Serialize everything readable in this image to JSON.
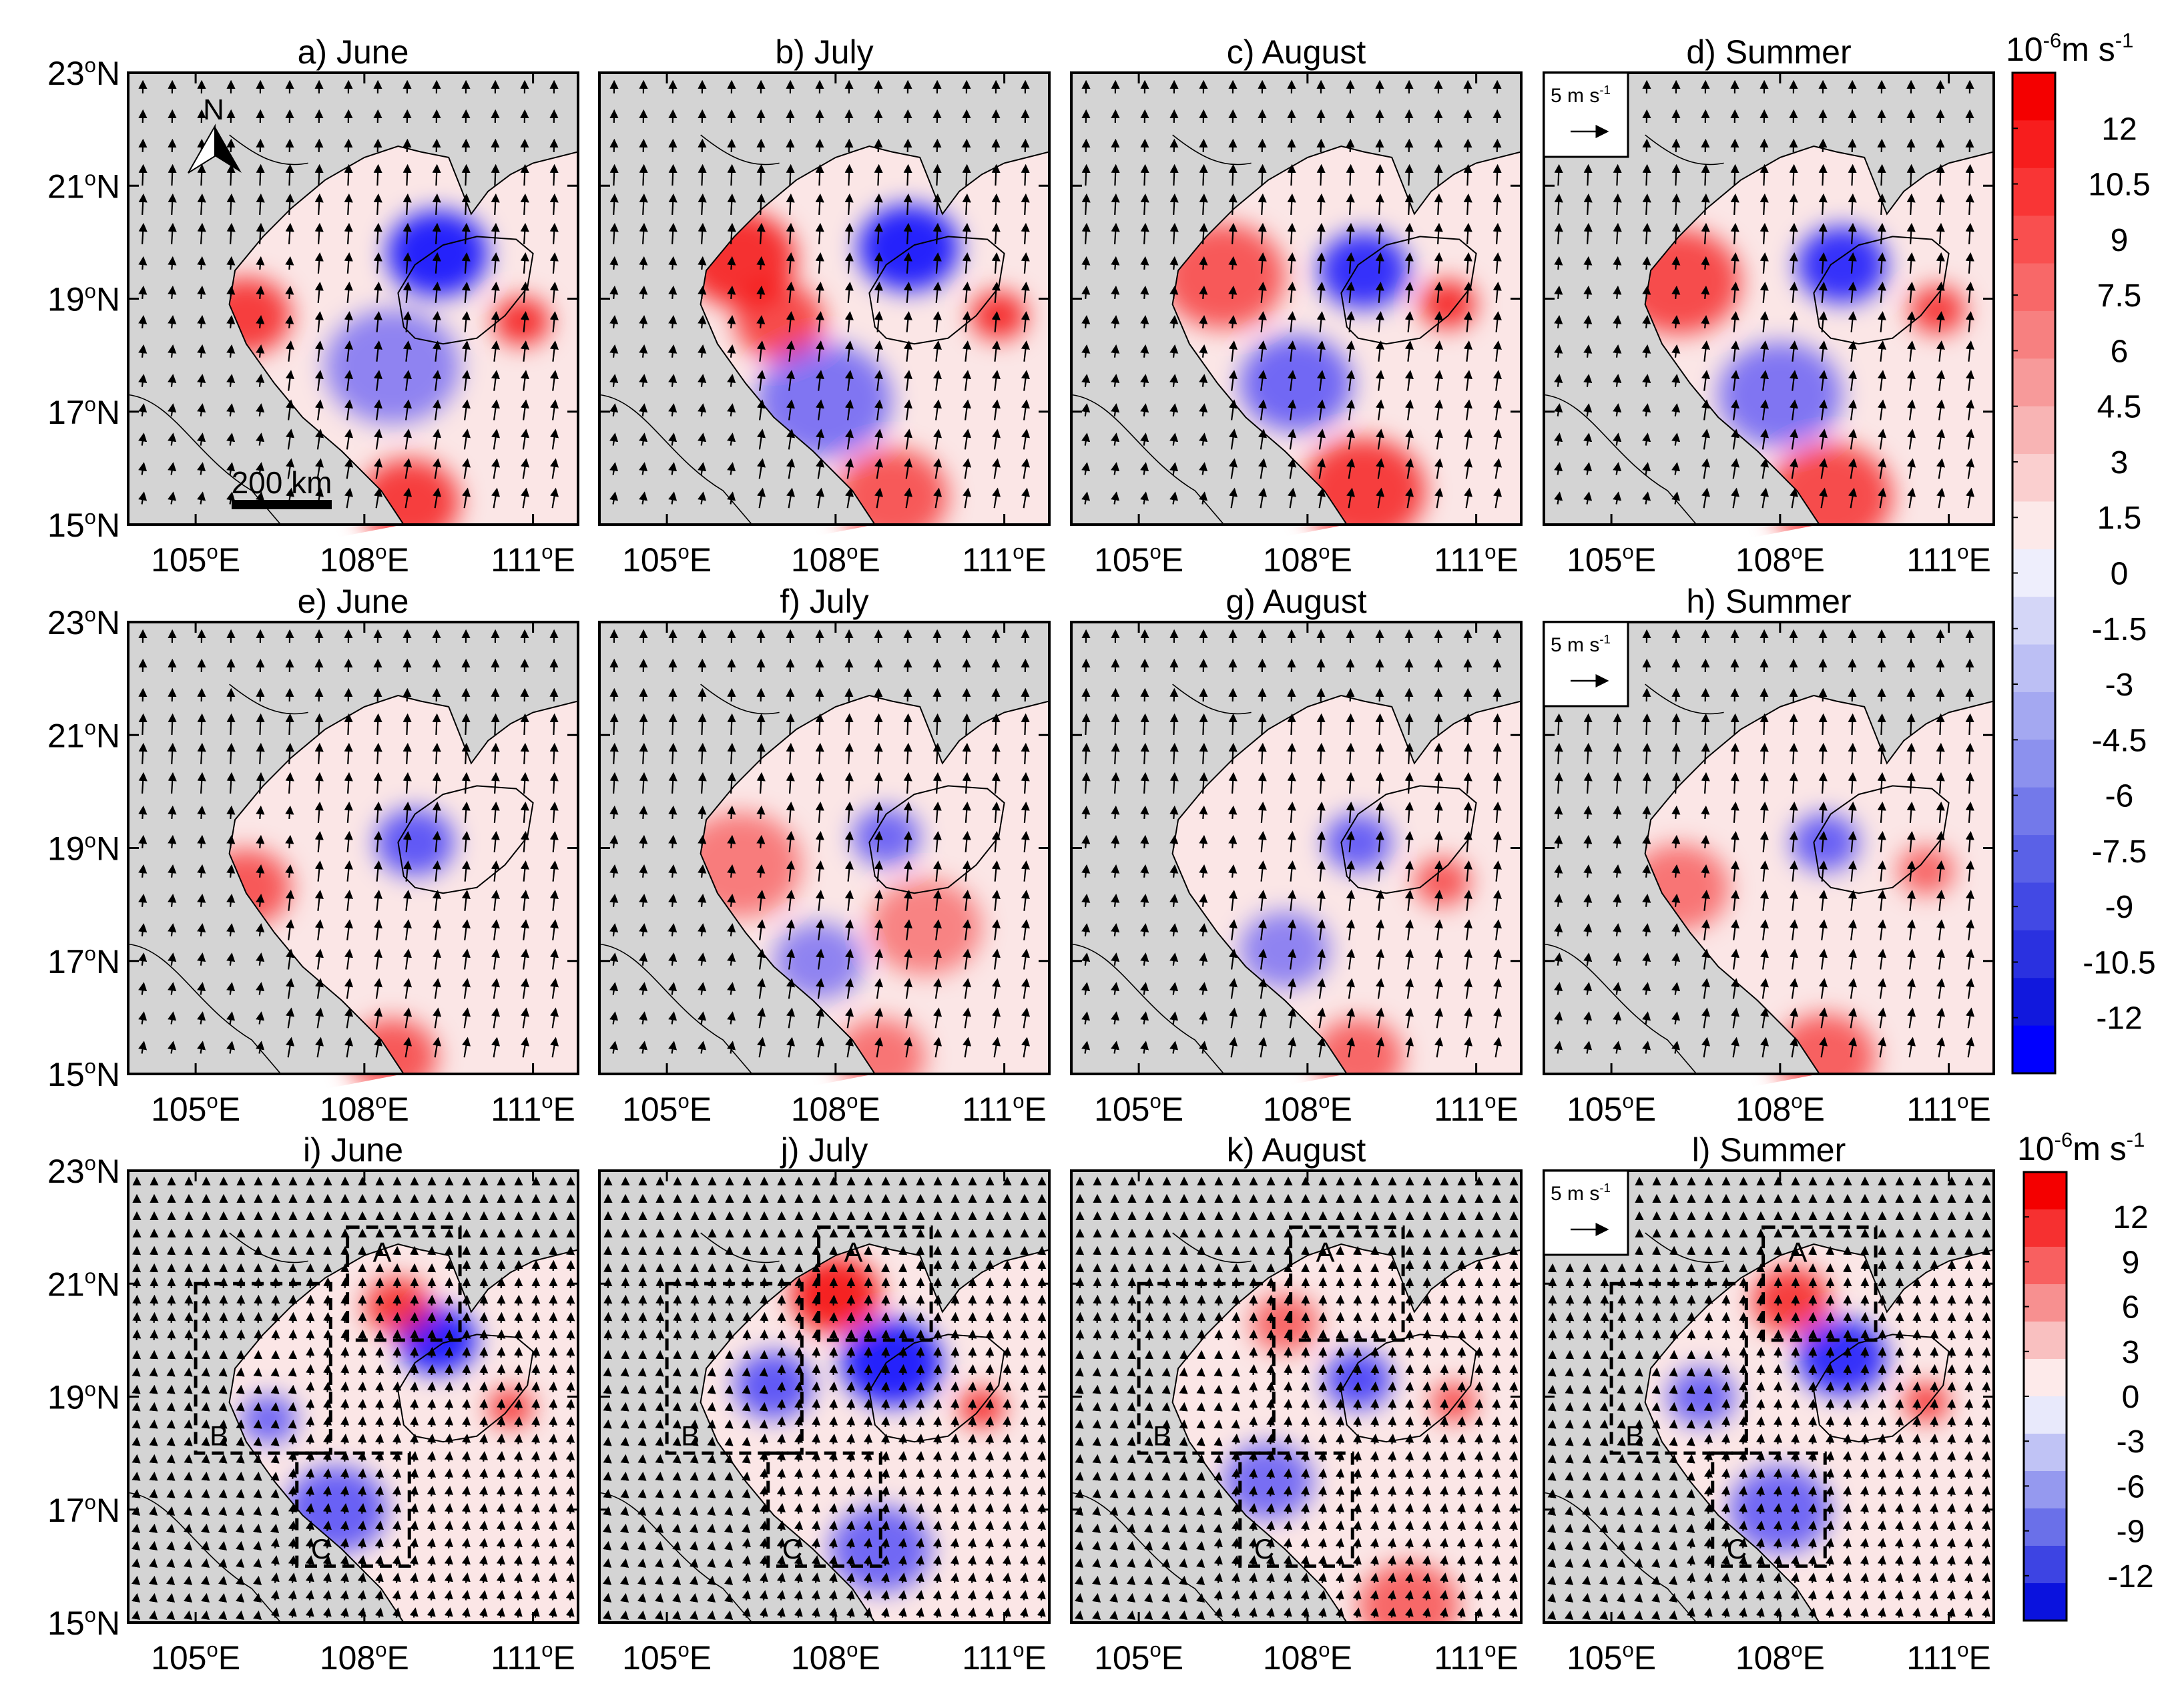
{
  "figure": {
    "rows": [
      {
        "panels": [
          {
            "label": "a) June"
          },
          {
            "label": "b) July"
          },
          {
            "label": "c) August"
          },
          {
            "label": "d) Summer"
          }
        ]
      },
      {
        "panels": [
          {
            "label": "e) June"
          },
          {
            "label": "f) July"
          },
          {
            "label": "g) August"
          },
          {
            "label": "h) Summer"
          }
        ]
      },
      {
        "panels": [
          {
            "label": "i) June"
          },
          {
            "label": "j) July"
          },
          {
            "label": "k) August"
          },
          {
            "label": "l) Summer"
          }
        ]
      }
    ],
    "lat_labels": [
      "23°N",
      "21°N",
      "19°N",
      "17°N",
      "15°N"
    ],
    "lon_labels": [
      "105°E",
      "108°E",
      "111°E"
    ],
    "north_arrow_label": "N",
    "scale_bar_label": "200 km",
    "reference_vector_label": "5 m s-1",
    "box_labels": [
      "A",
      "B",
      "C"
    ]
  },
  "colorbars": [
    {
      "title": "10-6m s-1",
      "ticks": [
        "12",
        "10.5",
        "9",
        "7.5",
        "6",
        "4.5",
        "3",
        "1.5",
        "0",
        "-1.5",
        "-3",
        "-4.5",
        "-6",
        "-7.5",
        "-9",
        "-10.5",
        "-12"
      ],
      "colors": [
        "#f40000",
        "#f71d1d",
        "#f93535",
        "#f94f4f",
        "#f86868",
        "#f78080",
        "#f79a9a",
        "#f8b4b4",
        "#facfcf",
        "#fce9e9",
        "#eeeefc",
        "#d4d6f7",
        "#bcbff4",
        "#a4a8f1",
        "#8c91ee",
        "#7379ea",
        "#5a61e7",
        "#4249e4",
        "#2a31e0",
        "#1118dd",
        "#0000ff"
      ]
    },
    {
      "title": "10-6m s-1",
      "ticks": [
        "12",
        "9",
        "6",
        "3",
        "0",
        "-3",
        "-6",
        "-9",
        "-12"
      ],
      "colors": [
        "#f40000",
        "#f63030",
        "#f86060",
        "#f79090",
        "#f9c0c0",
        "#fdeaea",
        "#e8e9fb",
        "#c0c3f5",
        "#9599ef",
        "#6a70e9",
        "#3d44e3",
        "#0a12de"
      ]
    }
  ],
  "colors": {
    "land": "#d4d4d4",
    "positive": "#f40000",
    "negative": "#0000ff",
    "coast": "#000000"
  }
}
